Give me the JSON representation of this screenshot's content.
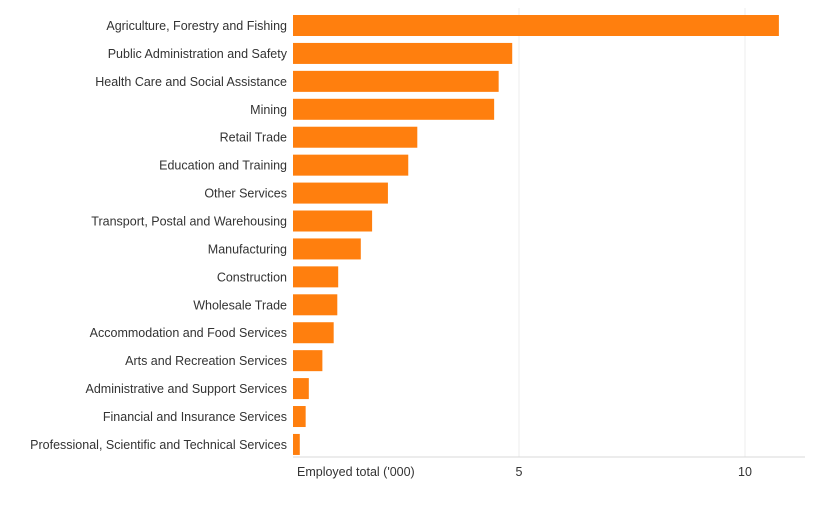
{
  "chart_data": {
    "type": "bar",
    "orientation": "horizontal",
    "xlabel": "Employed total ('000)",
    "ylabel": "",
    "xlim": [
      0,
      11.2
    ],
    "xticks": [
      5,
      10
    ],
    "grid": true,
    "bar_color": "#ff7f0e",
    "categories": [
      "Agriculture, Forestry and Fishing",
      "Public Administration and Safety",
      "Health Care and Social Assistance",
      "Mining",
      "Retail Trade",
      "Education and Training",
      "Other Services",
      "Transport, Postal and Warehousing",
      "Manufacturing",
      "Construction",
      "Wholesale Trade",
      "Accommodation and Food Services",
      "Arts and Recreation Services",
      "Administrative and Support Services",
      "Financial and Insurance Services",
      "Professional, Scientific and Technical Services"
    ],
    "values": [
      10.75,
      4.85,
      4.55,
      4.45,
      2.75,
      2.55,
      2.1,
      1.75,
      1.5,
      1.0,
      0.98,
      0.9,
      0.65,
      0.35,
      0.28,
      0.15
    ]
  }
}
